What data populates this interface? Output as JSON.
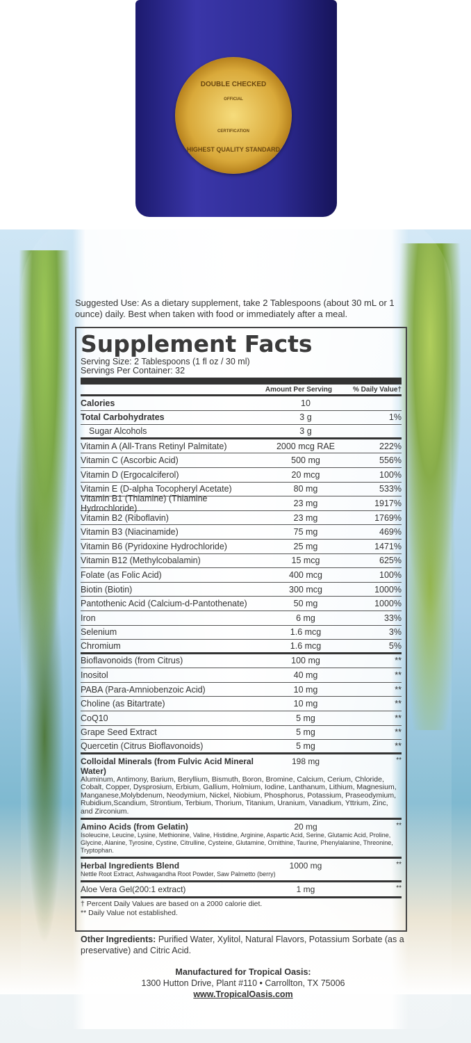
{
  "seal": {
    "top": "DOUBLE CHECKED",
    "official": "OFFICIAL",
    "cert": "CERTIFICATION",
    "bottom": "HIGHEST QUALITY STANDARD"
  },
  "suggested_use": "Suggested Use: As a dietary supplement, take 2 Tablespoons (about 30 mL or 1 ounce) daily. Best when taken with food or immediately after a meal.",
  "facts": {
    "title": "Supplement Facts",
    "serving_size": "Serving Size: 2 Tablespoons (1 fl oz / 30 ml)",
    "servings": "Servings Per Container: 32",
    "col_amount": "Amount Per Serving",
    "col_dv": "% Daily Value†",
    "rows": [
      {
        "name": "Calories",
        "amount": "10",
        "dv": ""
      },
      {
        "name": "Total Carbohydrates",
        "amount": "3 g",
        "dv": "1%"
      },
      {
        "name": "Sugar Alcohols",
        "amount": "3 g",
        "dv": ""
      },
      {
        "name": "Vitamin A (All-Trans Retinyl Palmitate)",
        "amount": "2000 mcg RAE",
        "dv": "222%"
      },
      {
        "name": "Vitamin C (Ascorbic Acid)",
        "amount": "500 mg",
        "dv": "556%"
      },
      {
        "name": "Vitamin D (Ergocalciferol)",
        "amount": "20 mcg",
        "dv": "100%"
      },
      {
        "name": "Vitamin E (D-alpha Tocopheryl Acetate)",
        "amount": "80 mg",
        "dv": "533%"
      },
      {
        "name": "Vitamin B1 (Thiamine) (Thiamine Hydrochloride)",
        "amount": "23 mg",
        "dv": "1917%"
      },
      {
        "name": "Vitamin B2 (Riboflavin)",
        "amount": "23 mg",
        "dv": "1769%"
      },
      {
        "name": "Vitamin B3 (Niacinamide)",
        "amount": "75 mg",
        "dv": "469%"
      },
      {
        "name": "Vitamin B6 (Pyridoxine Hydrochloride)",
        "amount": "25 mg",
        "dv": "1471%"
      },
      {
        "name": "Vitamin B12 (Methylcobalamin)",
        "amount": "15 mcg",
        "dv": "625%"
      },
      {
        "name": "Folate (as Folic Acid)",
        "amount": "400 mcg",
        "dv": "100%"
      },
      {
        "name": "Biotin (Biotin)",
        "amount": "300 mcg",
        "dv": "1000%"
      },
      {
        "name": "Pantothenic Acid (Calcium-d-Pantothenate)",
        "amount": "50 mg",
        "dv": "1000%"
      },
      {
        "name": "Iron",
        "amount": "6 mg",
        "dv": "33%"
      },
      {
        "name": "Selenium",
        "amount": "1.6 mcg",
        "dv": "3%"
      },
      {
        "name": "Chromium",
        "amount": "1.6 mcg",
        "dv": "5%"
      },
      {
        "name": "Bioflavonoids (from Citrus)",
        "amount": "100 mg",
        "dv": "**"
      },
      {
        "name": "Inositol",
        "amount": "40 mg",
        "dv": "**"
      },
      {
        "name": "PABA (Para-Amniobenzoic Acid)",
        "amount": "10 mg",
        "dv": "**"
      },
      {
        "name": "Choline (as Bitartrate)",
        "amount": "10 mg",
        "dv": "**"
      },
      {
        "name": "CoQ10",
        "amount": "5 mg",
        "dv": "**"
      },
      {
        "name": "Grape Seed Extract",
        "amount": "5 mg",
        "dv": "**"
      },
      {
        "name": "Quercetin (Citrus Bioflavonoids)",
        "amount": "5 mg",
        "dv": "**"
      }
    ],
    "colloidal": {
      "name": "Colloidal Minerals (from Fulvic Acid Mineral Water)",
      "amount": "198 mg",
      "dv": "**",
      "list": "Aluminum, Antimony, Barium, Beryllium, Bismuth, Boron, Bromine, Calcium, Cerium, Chloride, Cobalt, Copper, Dysprosium, Erbium, Gallium, Holmium, Iodine, Lanthanum, Lithium, Magnesium, Manganese,Molybdenum, Neodymium, Nickel, Niobium, Phosphorus, Potassium, Praseodymium, Rubidium,Scandium, Strontium, Terbium, Thorium, Titanium, Uranium, Vanadium, Yttrium, Zinc, and Zirconium."
    },
    "amino": {
      "name": "Amino Acids (from Gelatin)",
      "amount": "20 mg",
      "dv": "**",
      "list": "Isoleucine, Leucine, Lysine, Methionine, Valine, Histidine, Arginine, Aspartic Acid, Serine, Glutamic Acid, Proline, Glycine, Alanine, Tyrosine, Cystine, Citrulline, Cysteine, Glutamine, Ornithine, Taurine, Phenylalanine, Threonine, Tryptophan."
    },
    "herbal": {
      "name": "Herbal Ingredients Blend",
      "amount": "1000 mg",
      "dv": "**",
      "list": "Nettle Root Extract, Ashwagandha Root Powder, Saw Palmetto (berry)"
    },
    "aloe": {
      "name": "Aloe Vera Gel(200:1 extract)",
      "amount": "1 mg",
      "dv": "**"
    },
    "footnote1": "† Percent Daily Values are based on a 2000 calorie diet.",
    "footnote2": "** Daily Value not established."
  },
  "other_label": "Other Ingredients:",
  "other": " Purified Water, Xylitol, Natural Flavors, Potassium Sorbate (as a preservative) and Citric Acid.",
  "mfg": {
    "line1": "Manufactured for Tropical Oasis:",
    "line2": "1300 Hutton Drive, Plant #110 • Carrollton, TX 75006",
    "url": "www.TropicalOasis.com"
  }
}
